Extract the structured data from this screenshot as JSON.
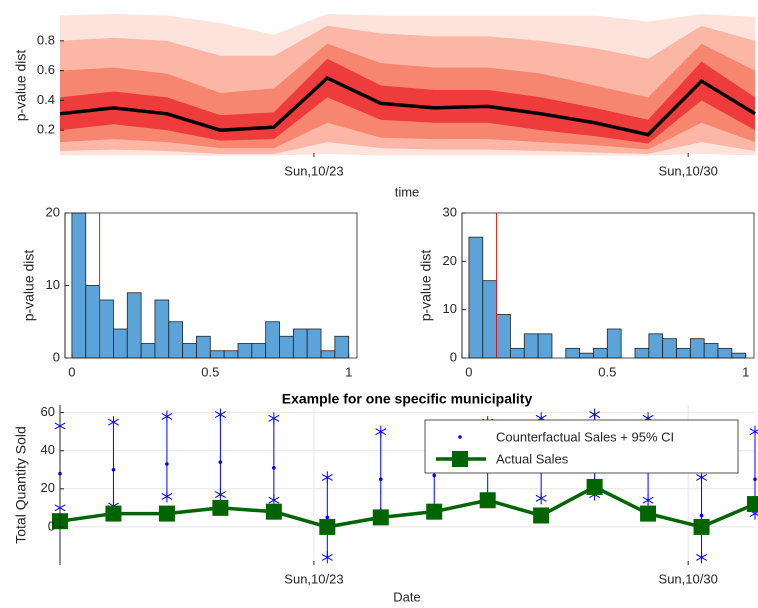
{
  "chart_data": [
    {
      "type": "fan",
      "xlabel": "time",
      "ylabel": "p-value dist",
      "x": [
        18.25,
        19.25,
        20.25,
        21.25,
        22.25,
        23.25,
        24.25,
        25.25,
        26.25,
        27.25,
        28.25,
        29.25,
        30.25,
        31.25
      ],
      "xlim": [
        18.25,
        31.25
      ],
      "xticks": [
        {
          "value": 23,
          "label": "Sun,10/23"
        },
        {
          "value": 30,
          "label": "Sun,10/30"
        }
      ],
      "ylim": [
        0.02,
        0.98
      ],
      "yticks": [
        0.2,
        0.4,
        0.6,
        0.8
      ],
      "bands": [
        {
          "color": "#fde3db",
          "upper": [
            0.97,
            0.98,
            0.97,
            0.92,
            0.84,
            0.98,
            0.97,
            0.97,
            0.97,
            0.97,
            0.97,
            0.93,
            0.98,
            0.96
          ],
          "lower": [
            0.03,
            0.03,
            0.03,
            0.03,
            0.03,
            0.04,
            0.03,
            0.03,
            0.03,
            0.03,
            0.03,
            0.03,
            0.04,
            0.03
          ]
        },
        {
          "color": "#fbb6a5",
          "upper": [
            0.8,
            0.82,
            0.8,
            0.7,
            0.7,
            0.9,
            0.85,
            0.83,
            0.83,
            0.8,
            0.75,
            0.68,
            0.9,
            0.8
          ],
          "lower": [
            0.06,
            0.07,
            0.06,
            0.04,
            0.04,
            0.12,
            0.08,
            0.07,
            0.07,
            0.06,
            0.05,
            0.04,
            0.12,
            0.06
          ]
        },
        {
          "color": "#f6866f",
          "upper": [
            0.6,
            0.62,
            0.58,
            0.45,
            0.48,
            0.78,
            0.65,
            0.62,
            0.62,
            0.58,
            0.5,
            0.42,
            0.78,
            0.6
          ],
          "lower": [
            0.12,
            0.14,
            0.12,
            0.08,
            0.08,
            0.25,
            0.15,
            0.14,
            0.14,
            0.12,
            0.1,
            0.07,
            0.25,
            0.12
          ]
        },
        {
          "color": "#ee3b3b",
          "upper": [
            0.42,
            0.46,
            0.42,
            0.3,
            0.32,
            0.68,
            0.5,
            0.47,
            0.47,
            0.42,
            0.35,
            0.27,
            0.66,
            0.42
          ],
          "lower": [
            0.2,
            0.24,
            0.2,
            0.13,
            0.14,
            0.42,
            0.27,
            0.25,
            0.25,
            0.2,
            0.16,
            0.11,
            0.4,
            0.2
          ]
        }
      ],
      "median": [
        0.31,
        0.35,
        0.31,
        0.2,
        0.22,
        0.55,
        0.38,
        0.35,
        0.36,
        0.31,
        0.25,
        0.17,
        0.53,
        0.31
      ],
      "median_color": "#000000"
    },
    {
      "type": "histogram",
      "ylabel": "p-value dist",
      "color": "#5ba3d9",
      "bins": [
        0,
        0.05,
        0.1,
        0.15,
        0.2,
        0.25,
        0.3,
        0.35,
        0.4,
        0.45,
        0.5,
        0.55,
        0.6,
        0.65,
        0.7,
        0.75,
        0.8,
        0.85,
        0.9,
        0.95,
        1
      ],
      "values": [
        20,
        10,
        8,
        4,
        9,
        2,
        8,
        5,
        2,
        3,
        1,
        1,
        2,
        2,
        5,
        3,
        4,
        4,
        1,
        3
      ],
      "vline": 0.1,
      "vline_color": "#e31a1c",
      "xlim": [
        -0.025,
        1.03
      ],
      "xticks": [
        0,
        0.5,
        1
      ],
      "ylim": [
        0,
        20
      ],
      "yticks": [
        0,
        10,
        20
      ]
    },
    {
      "type": "histogram",
      "ylabel": "p-value dist",
      "color": "#5ba3d9",
      "bins": [
        0,
        0.05,
        0.1,
        0.15,
        0.2,
        0.25,
        0.3,
        0.35,
        0.4,
        0.45,
        0.5,
        0.55,
        0.6,
        0.65,
        0.7,
        0.75,
        0.8,
        0.85,
        0.9,
        0.95,
        1
      ],
      "values": [
        25,
        16,
        9,
        2,
        5,
        5,
        0,
        2,
        1,
        2,
        6,
        0,
        2,
        5,
        4,
        2,
        4,
        3,
        2,
        1
      ],
      "vline": 0.1,
      "vline_color": "#e31a1c",
      "xlim": [
        -0.025,
        1.03
      ],
      "xticks": [
        0,
        0.5,
        1
      ],
      "ylim": [
        0,
        30
      ],
      "yticks": [
        0,
        10,
        20,
        30
      ]
    },
    {
      "type": "errorbar",
      "title": "Example for one specific municipality",
      "xlabel": "Date",
      "ylabel": "Total Quantity Sold",
      "x": [
        18.25,
        19.25,
        20.25,
        21.25,
        22.25,
        23.25,
        24.25,
        25.25,
        26.25,
        27.25,
        28.25,
        29.25,
        30.25,
        31.25
      ],
      "xlim": [
        18.25,
        31.25
      ],
      "xticks": [
        {
          "value": 23,
          "label": "Sun,10/23"
        },
        {
          "value": 30,
          "label": "Sun,10/30"
        }
      ],
      "ylim": [
        -20,
        64
      ],
      "yticks": [
        0,
        20,
        40,
        60
      ],
      "grid": true,
      "series": [
        {
          "name": "Counterfactual Sales + 95% CI",
          "color": "#0000ff",
          "values": [
            28,
            30,
            33,
            34,
            31,
            5,
            25,
            27,
            31,
            32,
            34,
            32,
            6,
            25
          ],
          "lower": [
            10,
            11,
            16,
            17,
            14,
            -16,
            7,
            8,
            13,
            15,
            17,
            14,
            -16,
            7
          ],
          "upper": [
            53,
            55,
            58,
            59,
            57,
            26,
            50,
            52,
            55,
            57,
            59,
            57,
            26,
            50
          ]
        },
        {
          "name": "Actual Sales",
          "color": "#006400",
          "values": [
            3,
            7,
            7,
            10,
            8,
            0,
            5,
            8,
            14,
            6,
            21,
            7,
            0,
            12
          ]
        }
      ]
    }
  ]
}
